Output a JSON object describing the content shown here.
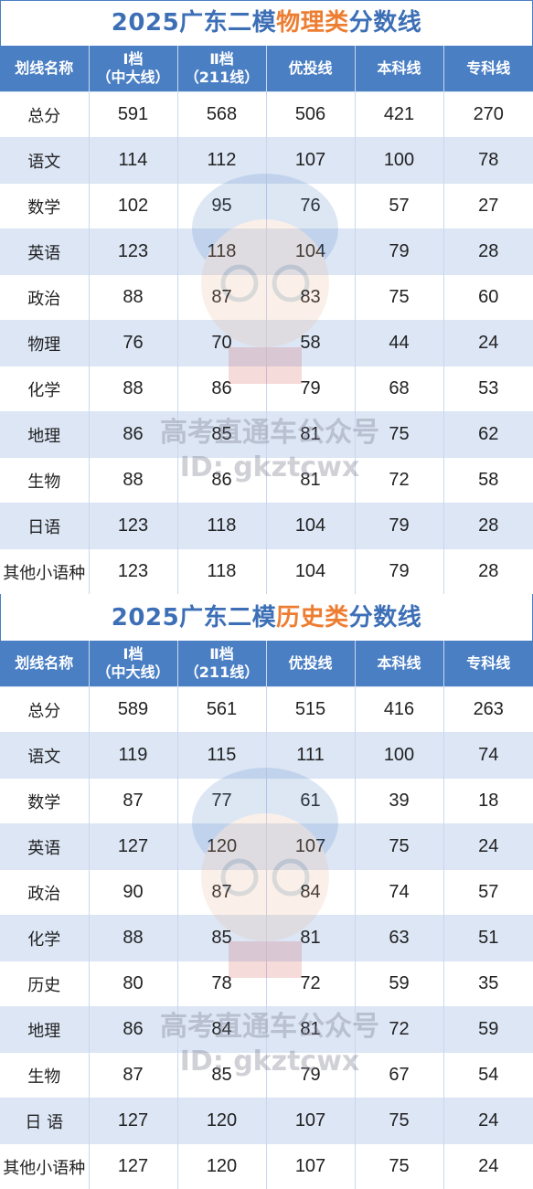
{
  "headers": [
    "划线名称",
    "Ⅰ档",
    "（中大线）",
    "Ⅱ档",
    "（211线）",
    "优投线",
    "本科线",
    "专科线"
  ],
  "physics": {
    "title_prefix": "2025广东二模",
    "title_highlight": "物理类",
    "title_suffix": "分数线",
    "rows": [
      [
        "总分",
        "591",
        "568",
        "506",
        "421",
        "270"
      ],
      [
        "语文",
        "114",
        "112",
        "107",
        "100",
        "78"
      ],
      [
        "数学",
        "102",
        "95",
        "76",
        "57",
        "27"
      ],
      [
        "英语",
        "123",
        "118",
        "104",
        "79",
        "28"
      ],
      [
        "政治",
        "88",
        "87",
        "83",
        "75",
        "60"
      ],
      [
        "物理",
        "76",
        "70",
        "58",
        "44",
        "24"
      ],
      [
        "化学",
        "88",
        "86",
        "79",
        "68",
        "53"
      ],
      [
        "地理",
        "86",
        "85",
        "81",
        "75",
        "62"
      ],
      [
        "生物",
        "88",
        "86",
        "81",
        "72",
        "58"
      ],
      [
        "日语",
        "123",
        "118",
        "104",
        "79",
        "28"
      ],
      [
        "其他小语种",
        "123",
        "118",
        "104",
        "79",
        "28"
      ]
    ]
  },
  "history": {
    "title_prefix": "2025广东二模",
    "title_highlight": "历史类",
    "title_suffix": "分数线",
    "rows": [
      [
        "总分",
        "589",
        "561",
        "515",
        "416",
        "263"
      ],
      [
        "语文",
        "119",
        "115",
        "111",
        "100",
        "74"
      ],
      [
        "数学",
        "87",
        "77",
        "61",
        "39",
        "18"
      ],
      [
        "英语",
        "127",
        "120",
        "107",
        "75",
        "24"
      ],
      [
        "政治",
        "90",
        "87",
        "84",
        "74",
        "57"
      ],
      [
        "化学",
        "88",
        "85",
        "81",
        "63",
        "51"
      ],
      [
        "历史",
        "80",
        "78",
        "72",
        "59",
        "35"
      ],
      [
        "地理",
        "86",
        "84",
        "81",
        "72",
        "59"
      ],
      [
        "生物",
        "87",
        "85",
        "79",
        "67",
        "54"
      ],
      [
        "日 语",
        "127",
        "120",
        "107",
        "75",
        "24"
      ],
      [
        "其他小语种",
        "127",
        "120",
        "107",
        "75",
        "24"
      ]
    ]
  },
  "watermark": {
    "line1": "高考直通车公众号",
    "line2": "ID: gkztcwx"
  },
  "colors": {
    "header_bg": "#4a7fc4",
    "title_blue": "#3d6fb6",
    "title_orange": "#ed7d31",
    "stripe": "#dce6f5"
  }
}
